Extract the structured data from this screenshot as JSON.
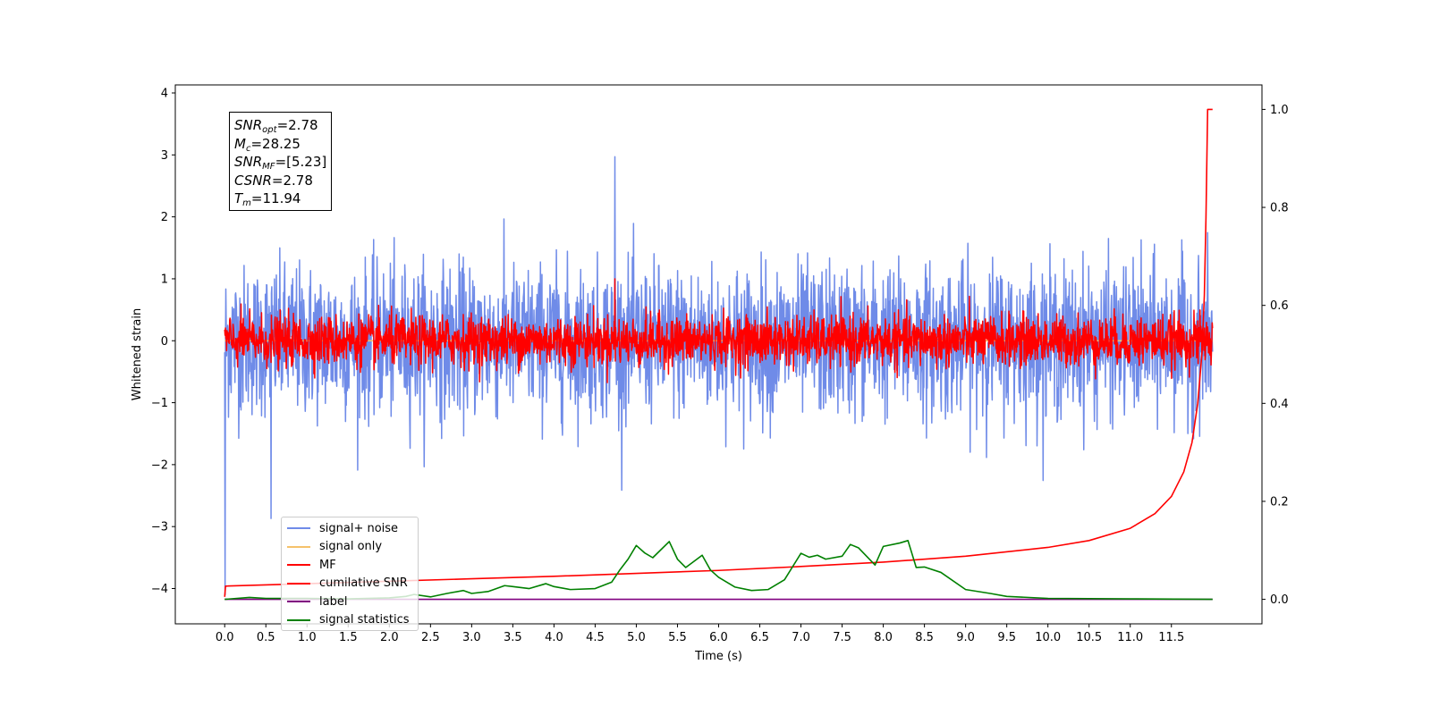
{
  "chart_data": {
    "type": "line",
    "xlabel": "Time (s)",
    "ylabel": "Whitened strain",
    "xlim": [
      -0.6,
      12.6
    ],
    "ylim": [
      -4.57,
      4.13
    ],
    "ylim_right": [
      -0.05,
      1.05
    ],
    "x_ticks": [
      0.0,
      0.5,
      1.0,
      1.5,
      2.0,
      2.5,
      3.0,
      3.5,
      4.0,
      4.5,
      5.0,
      5.5,
      6.0,
      6.5,
      7.0,
      7.5,
      8.0,
      8.5,
      9.0,
      9.5,
      10.0,
      10.5,
      11.0,
      11.5
    ],
    "x_tick_labels": [
      "0.0",
      "0.5",
      "1.0",
      "1.5",
      "2.0",
      "2.5",
      "3.0",
      "3.5",
      "4.0",
      "4.5",
      "5.0",
      "5.5",
      "6.0",
      "6.5",
      "7.0",
      "7.5",
      "8.0",
      "8.5",
      "9.0",
      "9.5",
      "10.0",
      "10.5",
      "11.0",
      "11.5"
    ],
    "y_ticks": [
      4,
      3,
      2,
      1,
      0,
      -1,
      -2,
      -3,
      -4
    ],
    "y_tick_labels": [
      "4",
      "3",
      "2",
      "1",
      "0",
      "−1",
      "−2",
      "−3",
      "−4"
    ],
    "y_right_ticks": [
      1.0,
      0.8,
      0.6,
      0.4,
      0.2,
      0.0
    ],
    "y_right_tick_labels": [
      "1.0",
      "0.8",
      "0.6",
      "0.4",
      "0.2",
      "0.0"
    ],
    "duration": 12.0,
    "series": [
      {
        "name": "signal+ noise",
        "color": "#6f8be8",
        "axis": "left",
        "kind": "noise",
        "amplitude": 0.6,
        "extremes": [
          2.97,
          -2.87
        ]
      },
      {
        "name": "signal only",
        "color": "#f5c26b",
        "axis": "left",
        "kind": "flat",
        "values": [
          0.0
        ]
      },
      {
        "name": "MF",
        "color": "#ff0000",
        "axis": "left",
        "kind": "noise",
        "amplitude": 0.2,
        "extremes": [
          1.0,
          -0.35
        ]
      },
      {
        "name": "cumilative SNR",
        "color": "#ff0000",
        "axis": "right",
        "x": [
          0.0,
          0.01,
          1.0,
          2.0,
          3.0,
          4.0,
          5.0,
          6.0,
          7.0,
          8.0,
          9.0,
          10.0,
          10.5,
          11.0,
          11.3,
          11.5,
          11.65,
          11.75,
          11.82,
          11.87,
          11.9,
          11.92,
          11.94,
          12.0
        ],
        "values": [
          0.005,
          0.027,
          0.032,
          0.037,
          0.042,
          0.047,
          0.053,
          0.059,
          0.067,
          0.076,
          0.088,
          0.106,
          0.12,
          0.145,
          0.175,
          0.21,
          0.26,
          0.32,
          0.4,
          0.5,
          0.62,
          0.78,
          1.0,
          1.0
        ]
      },
      {
        "name": "label",
        "color": "#800080",
        "axis": "right",
        "kind": "flat",
        "values": [
          0.0
        ]
      },
      {
        "name": "signal statistics",
        "color": "#008000",
        "axis": "right",
        "x": [
          0.0,
          0.3,
          0.5,
          0.8,
          1.0,
          1.5,
          2.0,
          2.2,
          2.3,
          2.5,
          2.7,
          2.9,
          3.0,
          3.2,
          3.4,
          3.5,
          3.7,
          3.9,
          4.0,
          4.2,
          4.5,
          4.7,
          4.8,
          4.9,
          5.0,
          5.1,
          5.2,
          5.4,
          5.5,
          5.6,
          5.8,
          5.9,
          6.0,
          6.2,
          6.4,
          6.6,
          6.8,
          7.0,
          7.1,
          7.2,
          7.3,
          7.5,
          7.6,
          7.7,
          7.9,
          8.0,
          8.2,
          8.3,
          8.4,
          8.5,
          8.7,
          9.0,
          9.3,
          9.5,
          10.0,
          11.0,
          12.0
        ],
        "values": [
          0.0,
          0.004,
          0.002,
          0.002,
          0.002,
          0.001,
          0.003,
          0.006,
          0.01,
          0.005,
          0.012,
          0.018,
          0.012,
          0.016,
          0.028,
          0.026,
          0.022,
          0.032,
          0.026,
          0.02,
          0.022,
          0.035,
          0.06,
          0.082,
          0.11,
          0.095,
          0.085,
          0.118,
          0.082,
          0.065,
          0.09,
          0.06,
          0.045,
          0.025,
          0.018,
          0.02,
          0.04,
          0.094,
          0.086,
          0.09,
          0.082,
          0.088,
          0.112,
          0.105,
          0.07,
          0.108,
          0.115,
          0.12,
          0.065,
          0.066,
          0.055,
          0.02,
          0.012,
          0.006,
          0.002,
          0.001,
          0.0
        ]
      }
    ]
  },
  "annotation": {
    "snr_opt": {
      "base": "SNR",
      "sub": "opt",
      "value": "=2.78"
    },
    "mc": {
      "base": "M",
      "sub": "c",
      "value": "=28.25"
    },
    "snr_mf": {
      "base": "SNR",
      "sub": "MF",
      "value": "=[5.23]"
    },
    "csnr": {
      "base": "CSNR",
      "value": "=2.78"
    },
    "tm": {
      "base": "T",
      "sub": "m",
      "value": "=11.94"
    }
  }
}
